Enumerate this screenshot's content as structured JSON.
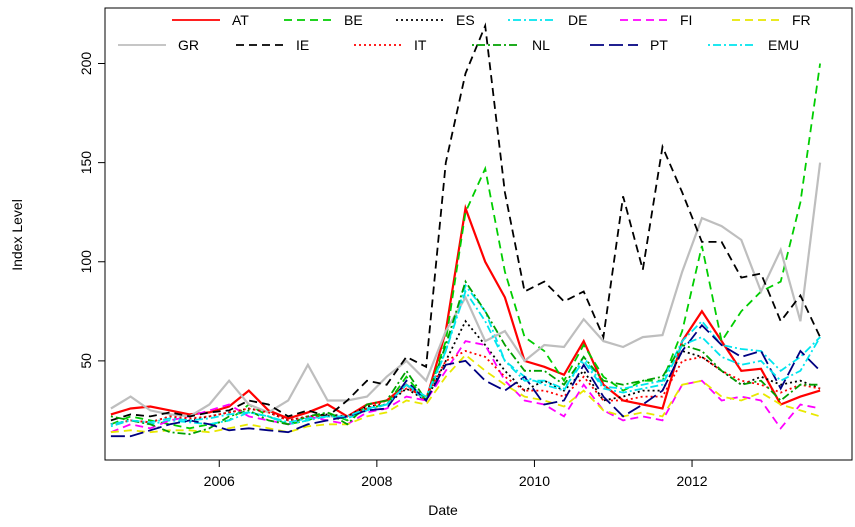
{
  "chart_data": {
    "type": "line",
    "x_label": "Date",
    "y_label": "Index Level",
    "x": [
      2004.625,
      2004.875,
      2005.125,
      2005.375,
      2005.625,
      2005.875,
      2006.125,
      2006.375,
      2006.625,
      2006.875,
      2007.125,
      2007.375,
      2007.625,
      2007.875,
      2008.125,
      2008.375,
      2008.625,
      2008.875,
      2009.125,
      2009.375,
      2009.625,
      2009.875,
      2010.125,
      2010.375,
      2010.625,
      2010.875,
      2011.125,
      2011.375,
      2011.625,
      2011.875,
      2012.125,
      2012.375,
      2012.625,
      2012.875,
      2013.125,
      2013.375,
      2013.625
    ],
    "xlim": [
      2004.55,
      2014.03
    ],
    "xticks": [
      2006,
      2008,
      2010,
      2012
    ],
    "ylim": [
      0,
      228
    ],
    "yticks": [
      50,
      100,
      150,
      200
    ],
    "series": [
      {
        "name": "AT",
        "color": "#ff0000",
        "dash": "solid",
        "values": [
          23,
          26,
          27,
          25,
          23,
          24,
          27,
          35,
          25,
          21,
          24,
          28,
          22,
          28,
          30,
          38,
          30,
          65,
          127,
          100,
          82,
          50,
          47,
          43,
          60,
          38,
          30,
          28,
          26,
          60,
          75,
          60,
          45,
          46,
          28,
          32,
          35
        ]
      },
      {
        "name": "BE",
        "color": "#00cd00",
        "dash": "dashed",
        "values": [
          18,
          22,
          20,
          18,
          16,
          18,
          20,
          28,
          22,
          18,
          20,
          24,
          20,
          26,
          28,
          42,
          30,
          60,
          125,
          147,
          95,
          62,
          55,
          40,
          58,
          42,
          35,
          40,
          40,
          65,
          108,
          60,
          75,
          85,
          90,
          130,
          200
        ]
      },
      {
        "name": "ES",
        "color": "#000000",
        "dash": "dotted",
        "values": [
          18,
          20,
          19,
          22,
          20,
          22,
          24,
          26,
          24,
          20,
          22,
          23,
          22,
          27,
          28,
          36,
          30,
          50,
          70,
          58,
          45,
          35,
          40,
          35,
          45,
          30,
          32,
          35,
          35,
          55,
          52,
          45,
          38,
          42,
          38,
          40,
          36
        ]
      },
      {
        "name": "DE",
        "color": "#00e5ee",
        "dash": "dotdash",
        "values": [
          17,
          20,
          18,
          20,
          19,
          18,
          20,
          24,
          22,
          18,
          20,
          22,
          21,
          25,
          28,
          38,
          30,
          55,
          88,
          75,
          50,
          42,
          38,
          35,
          52,
          37,
          36,
          38,
          40,
          60,
          70,
          58,
          56,
          55,
          45,
          52,
          62
        ]
      },
      {
        "name": "FI",
        "color": "#ff00ff",
        "dash": "dashed",
        "values": [
          14,
          18,
          16,
          20,
          22,
          25,
          28,
          22,
          20,
          18,
          22,
          20,
          18,
          24,
          26,
          32,
          30,
          45,
          60,
          58,
          40,
          30,
          28,
          22,
          38,
          25,
          20,
          22,
          20,
          38,
          40,
          30,
          32,
          30,
          16,
          28,
          26
        ]
      },
      {
        "name": "FR",
        "color": "#e8e800",
        "dash": "dashed",
        "values": [
          14,
          15,
          14,
          15,
          15,
          14,
          16,
          18,
          16,
          14,
          17,
          18,
          18,
          22,
          24,
          30,
          28,
          42,
          53,
          45,
          38,
          32,
          30,
          27,
          35,
          25,
          22,
          24,
          22,
          38,
          40,
          32,
          30,
          34,
          28,
          25,
          22
        ]
      },
      {
        "name": "GR",
        "color": "#bebebe",
        "dash": "solid",
        "values": [
          26,
          32,
          25,
          23,
          22,
          28,
          40,
          28,
          24,
          30,
          48,
          30,
          30,
          32,
          42,
          50,
          40,
          65,
          82,
          60,
          65,
          50,
          58,
          57,
          71,
          60,
          57,
          62,
          63,
          95,
          122,
          118,
          111,
          85,
          106,
          70,
          150
        ]
      },
      {
        "name": "IE",
        "color": "#000000",
        "dash": "dashed",
        "values": [
          20,
          23,
          22,
          24,
          22,
          24,
          25,
          30,
          28,
          22,
          25,
          22,
          30,
          40,
          38,
          52,
          47,
          150,
          195,
          219,
          135,
          85,
          90,
          80,
          85,
          62,
          133,
          96,
          158,
          135,
          110,
          110,
          92,
          94,
          70,
          83,
          62
        ]
      },
      {
        "name": "IT",
        "color": "#ff0000",
        "dash": "dotted",
        "values": [
          18,
          20,
          19,
          22,
          21,
          22,
          24,
          26,
          24,
          20,
          22,
          22,
          22,
          26,
          30,
          36,
          32,
          50,
          55,
          52,
          42,
          35,
          35,
          32,
          42,
          30,
          30,
          32,
          32,
          50,
          52,
          45,
          40,
          38,
          34,
          38,
          36
        ]
      },
      {
        "name": "NL",
        "color": "#00a000",
        "dash": "dotdash",
        "values": [
          22,
          20,
          18,
          14,
          13,
          16,
          22,
          25,
          20,
          18,
          22,
          24,
          18,
          28,
          30,
          45,
          30,
          58,
          90,
          75,
          58,
          45,
          45,
          38,
          52,
          40,
          38,
          40,
          42,
          58,
          55,
          45,
          38,
          40,
          30,
          38,
          38
        ]
      },
      {
        "name": "PT",
        "color": "#000080",
        "dash": "longdash",
        "values": [
          12,
          12,
          15,
          18,
          20,
          18,
          15,
          16,
          15,
          14,
          18,
          20,
          22,
          25,
          26,
          40,
          30,
          48,
          50,
          40,
          35,
          42,
          28,
          30,
          48,
          32,
          22,
          28,
          35,
          55,
          68,
          58,
          52,
          55,
          36,
          55,
          45
        ]
      },
      {
        "name": "EMU",
        "color": "#00e5ee",
        "dash": "dotdash",
        "values": [
          18,
          20,
          19,
          21,
          20,
          21,
          23,
          24,
          22,
          19,
          21,
          22,
          22,
          26,
          28,
          38,
          32,
          55,
          85,
          70,
          50,
          40,
          40,
          36,
          50,
          36,
          34,
          36,
          38,
          58,
          62,
          52,
          48,
          50,
          40,
          45,
          62
        ]
      }
    ]
  }
}
